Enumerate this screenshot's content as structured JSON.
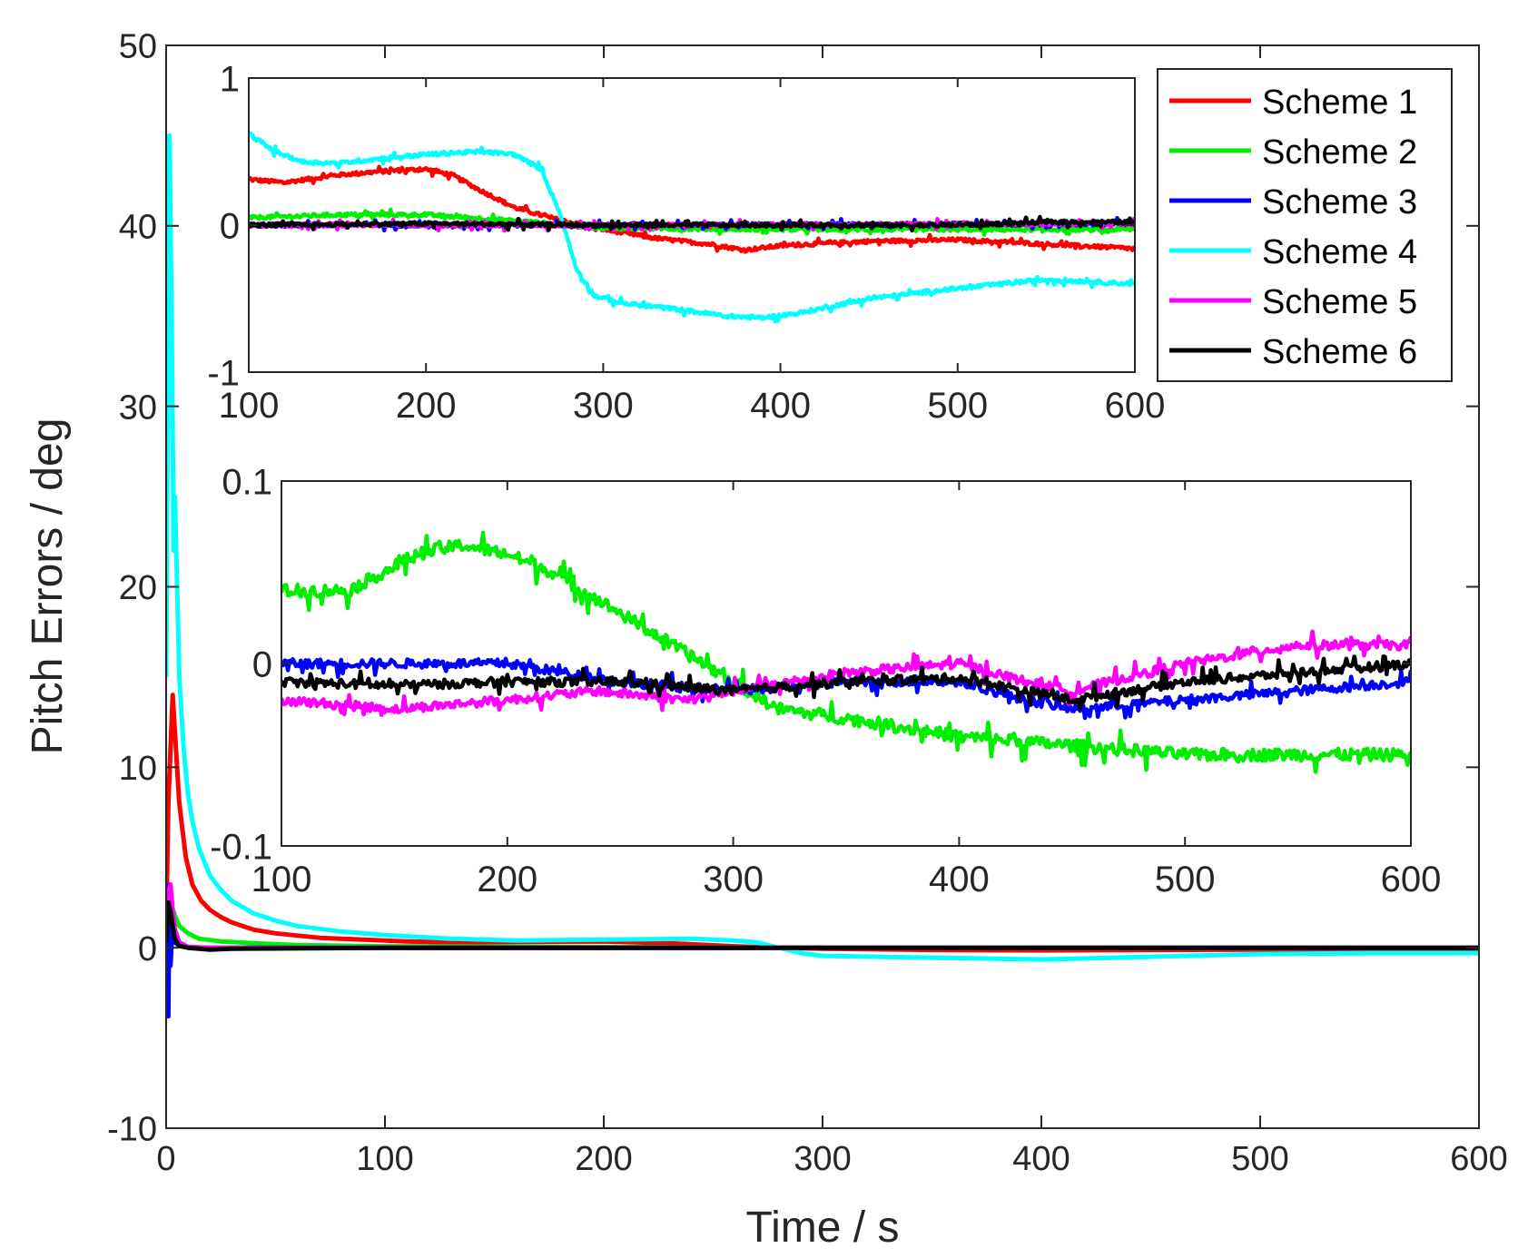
{
  "chart_data": [
    {
      "type": "line",
      "role": "main",
      "xlabel": "Time / s",
      "ylabel": "Pitch Errors / deg",
      "xlim": [
        0,
        600
      ],
      "ylim": [
        -10,
        50
      ],
      "xticks": [
        0,
        100,
        200,
        300,
        400,
        500,
        600
      ],
      "yticks": [
        -10,
        0,
        10,
        20,
        30,
        40,
        50
      ],
      "grid": false,
      "series": [
        {
          "name": "Scheme 1",
          "color": "#ff0000",
          "x": [
            0,
            1,
            3,
            4,
            6,
            9,
            12,
            16,
            20,
            25,
            30,
            40,
            50,
            70,
            90,
            110,
            130,
            160,
            200,
            230,
            260,
            280,
            300,
            350,
            400,
            450,
            500,
            550,
            600
          ],
          "y": [
            1,
            8,
            14,
            12,
            8,
            5,
            3.5,
            2.6,
            2.1,
            1.7,
            1.4,
            1.0,
            0.8,
            0.55,
            0.45,
            0.35,
            0.3,
            0.32,
            0.35,
            0.25,
            0.08,
            0.0,
            -0.05,
            -0.12,
            -0.15,
            -0.12,
            -0.1,
            -0.15,
            -0.2
          ]
        },
        {
          "name": "Scheme 2",
          "color": "#00ee00",
          "x": [
            0,
            2,
            4,
            6,
            10,
            15,
            25,
            40,
            60,
            100,
            200,
            300,
            400,
            500,
            600
          ],
          "y": [
            1,
            2.5,
            1.8,
            1.2,
            0.8,
            0.5,
            0.35,
            0.25,
            0.15,
            0.08,
            0.04,
            0.0,
            -0.02,
            -0.02,
            -0.02
          ]
        },
        {
          "name": "Scheme 3",
          "color": "#0000ff",
          "x": [
            0,
            1,
            1.5,
            2,
            3,
            4,
            6,
            10,
            20,
            100,
            300,
            600
          ],
          "y": [
            0,
            -3.8,
            3.5,
            -1,
            1.5,
            0.3,
            0.1,
            0.02,
            0,
            0,
            0,
            0
          ]
        },
        {
          "name": "Scheme 4",
          "color": "#00ffff",
          "x": [
            0,
            1.5,
            2.5,
            3.5,
            4,
            5,
            6,
            8,
            10,
            12,
            15,
            20,
            25,
            30,
            40,
            50,
            60,
            80,
            100,
            130,
            160,
            200,
            240,
            260,
            270,
            280,
            290,
            300,
            350,
            400,
            450,
            500,
            550,
            600
          ],
          "y": [
            15,
            45,
            35,
            22,
            25,
            20,
            15,
            11,
            8.5,
            7,
            5.5,
            4,
            3.2,
            2.6,
            1.9,
            1.5,
            1.2,
            0.9,
            0.7,
            0.5,
            0.4,
            0.45,
            0.5,
            0.4,
            0.3,
            0.0,
            -0.3,
            -0.45,
            -0.55,
            -0.65,
            -0.5,
            -0.35,
            -0.3,
            -0.3
          ]
        },
        {
          "name": "Scheme 5",
          "color": "#ff00ff",
          "x": [
            0,
            1,
            2,
            3,
            4,
            6,
            10,
            20,
            100,
            300,
            600
          ],
          "y": [
            0.5,
            3,
            3.5,
            2,
            1,
            0.3,
            0.05,
            0,
            0,
            0,
            0
          ]
        },
        {
          "name": "Scheme 6",
          "color": "#000000",
          "x": [
            0,
            1,
            2,
            3,
            4,
            6,
            10,
            20,
            30,
            100,
            300,
            600
          ],
          "y": [
            0.3,
            2.5,
            2,
            1.2,
            0.5,
            0.1,
            0.0,
            -0.1,
            -0.05,
            0,
            0,
            0
          ]
        }
      ]
    },
    {
      "type": "line",
      "role": "inset-upper",
      "xlim": [
        100,
        600
      ],
      "ylim": [
        -1,
        1
      ],
      "xticks": [
        100,
        200,
        300,
        400,
        500,
        600
      ],
      "yticks": [
        -1,
        0,
        1
      ],
      "grid": false,
      "series": [
        {
          "name": "Scheme 1",
          "color": "#ff0000",
          "x": [
            100,
            120,
            150,
            180,
            200,
            215,
            230,
            250,
            270,
            300,
            330,
            360,
            380,
            400,
            450,
            500,
            550,
            600
          ],
          "y": [
            0.31,
            0.29,
            0.34,
            0.37,
            0.38,
            0.34,
            0.24,
            0.12,
            0.05,
            -0.03,
            -0.09,
            -0.13,
            -0.17,
            -0.14,
            -0.11,
            -0.1,
            -0.13,
            -0.16
          ]
        },
        {
          "name": "Scheme 2",
          "color": "#00ee00",
          "x": [
            100,
            150,
            200,
            250,
            280,
            300,
            400,
            500,
            600
          ],
          "y": [
            0.05,
            0.07,
            0.07,
            0.03,
            0.0,
            -0.02,
            -0.03,
            -0.03,
            -0.03
          ]
        },
        {
          "name": "Scheme 3",
          "color": "#0000ff",
          "x": [
            100,
            300,
            600
          ],
          "y": [
            0.0,
            0.0,
            0.01
          ]
        },
        {
          "name": "Scheme 4",
          "color": "#00ffff",
          "x": [
            100,
            115,
            130,
            150,
            180,
            200,
            230,
            250,
            265,
            275,
            285,
            295,
            310,
            340,
            370,
            390,
            410,
            450,
            500,
            550,
            600
          ],
          "y": [
            0.62,
            0.5,
            0.43,
            0.42,
            0.46,
            0.48,
            0.5,
            0.48,
            0.38,
            0.1,
            -0.3,
            -0.48,
            -0.53,
            -0.57,
            -0.62,
            -0.63,
            -0.6,
            -0.5,
            -0.43,
            -0.37,
            -0.4
          ]
        },
        {
          "name": "Scheme 5",
          "color": "#ff00ff",
          "x": [
            100,
            300,
            600
          ],
          "y": [
            0.0,
            0.0,
            0.01
          ]
        },
        {
          "name": "Scheme 6",
          "color": "#000000",
          "x": [
            100,
            200,
            300,
            400,
            500,
            550,
            600
          ],
          "y": [
            0.0,
            0.01,
            0.0,
            0.0,
            0.0,
            0.02,
            0.02
          ]
        }
      ]
    },
    {
      "type": "line",
      "role": "inset-lower",
      "xlim": [
        100,
        600
      ],
      "ylim": [
        -0.1,
        0.1
      ],
      "xticks": [
        100,
        200,
        300,
        400,
        500,
        600
      ],
      "yticks": [
        -0.1,
        0,
        0.1
      ],
      "grid": false,
      "series": [
        {
          "name": "Scheme 2",
          "color": "#00ee00",
          "x": [
            100,
            130,
            160,
            180,
            200,
            220,
            240,
            260,
            280,
            300,
            320,
            350,
            400,
            450,
            500,
            550,
            600
          ],
          "y": [
            0.04,
            0.04,
            0.06,
            0.065,
            0.06,
            0.05,
            0.035,
            0.02,
            0.005,
            -0.01,
            -0.025,
            -0.03,
            -0.04,
            -0.045,
            -0.05,
            -0.05,
            -0.05
          ]
        },
        {
          "name": "Scheme 3",
          "color": "#0000ff",
          "x": [
            100,
            150,
            200,
            250,
            300,
            350,
            400,
            430,
            450,
            500,
            550,
            600
          ],
          "y": [
            0.0,
            0.0,
            0.0,
            -0.01,
            -0.015,
            -0.01,
            -0.01,
            -0.02,
            -0.025,
            -0.02,
            -0.015,
            -0.01
          ]
        },
        {
          "name": "Scheme 5",
          "color": "#ff00ff",
          "x": [
            100,
            150,
            200,
            240,
            280,
            300,
            350,
            400,
            430,
            450,
            500,
            550,
            600
          ],
          "y": [
            -0.02,
            -0.025,
            -0.02,
            -0.015,
            -0.02,
            -0.015,
            -0.005,
            0.0,
            -0.01,
            -0.015,
            0.0,
            0.01,
            0.01
          ]
        },
        {
          "name": "Scheme 6",
          "color": "#000000",
          "x": [
            100,
            150,
            200,
            250,
            300,
            350,
            400,
            430,
            450,
            500,
            550,
            600
          ],
          "y": [
            -0.01,
            -0.012,
            -0.01,
            -0.01,
            -0.015,
            -0.01,
            -0.008,
            -0.015,
            -0.02,
            -0.01,
            -0.005,
            0.0
          ]
        }
      ]
    }
  ],
  "legend": {
    "placement": "top-right",
    "items": [
      "Scheme 1",
      "Scheme 2",
      "Scheme 3",
      "Scheme 4",
      "Scheme 5",
      "Scheme 6"
    ]
  }
}
